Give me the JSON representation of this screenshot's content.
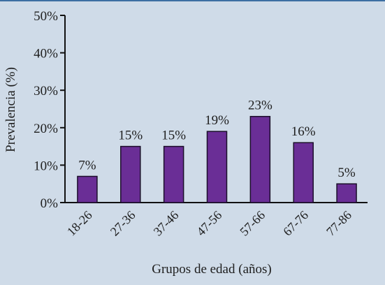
{
  "chart_data": {
    "type": "bar",
    "categories": [
      "18-26",
      "27-36",
      "37-46",
      "47-56",
      "57-66",
      "67-76",
      "77-86"
    ],
    "values": [
      7,
      15,
      15,
      19,
      23,
      16,
      5
    ],
    "data_labels": [
      "7%",
      "15%",
      "15%",
      "19%",
      "23%",
      "16%",
      "5%"
    ],
    "ylabel": "Prevalencia (%)",
    "xlabel": "Grupos de edad (años)",
    "ylim": [
      0,
      50
    ],
    "yticks": [
      0,
      10,
      20,
      30,
      40,
      50
    ],
    "ytick_labels": [
      "0%",
      "10%",
      "20%",
      "30%",
      "40%",
      "50%"
    ],
    "grid": false,
    "colors": {
      "bar_fill": "#6a2e96",
      "bar_stroke": "#1b0f2a",
      "background": "#cfdbe8",
      "top_border": "#3d6fa3"
    }
  }
}
